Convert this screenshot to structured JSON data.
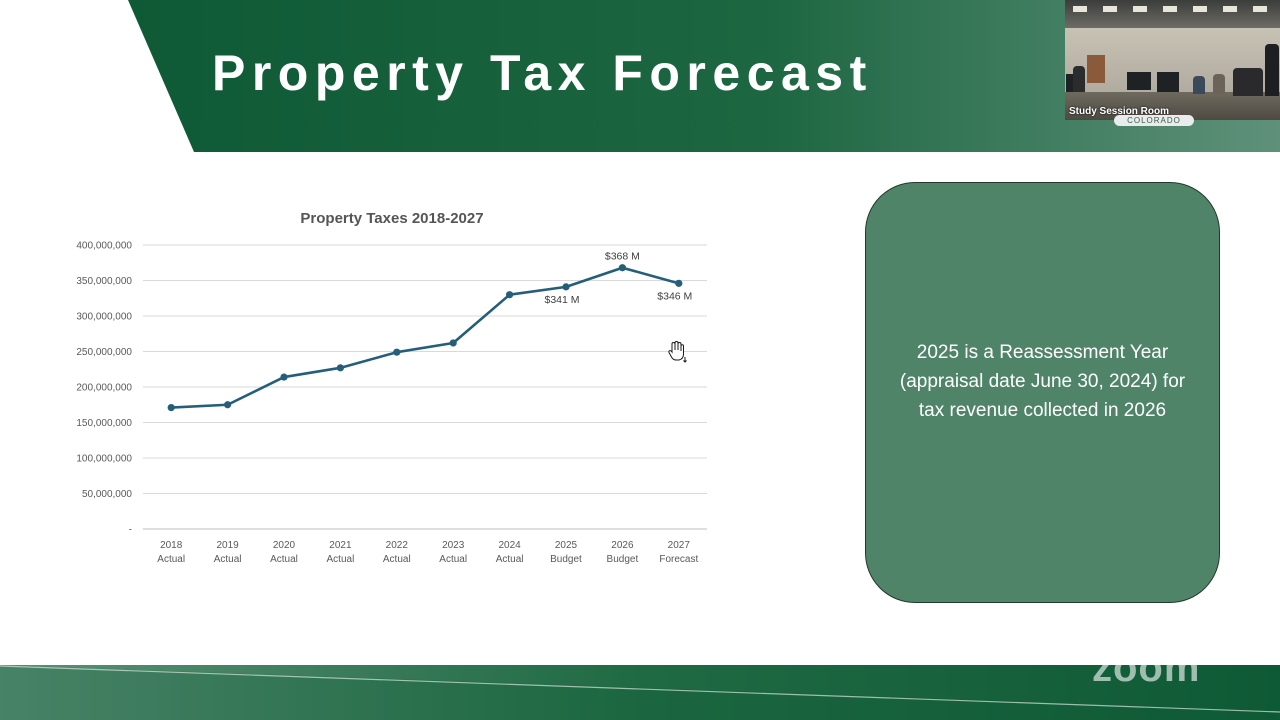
{
  "slide": {
    "title": "Property Tax Forecast"
  },
  "video": {
    "room_label": "Study Session Room",
    "badge_text": "COLORADO"
  },
  "callout": {
    "text": "2025 is a Reassessment Year (appraisal date June 30, 2024) for tax revenue collected in 2026"
  },
  "watermark": {
    "text": "zoom"
  },
  "colors": {
    "banner_dark": "#0f5a36",
    "banner_light": "#5f917a",
    "line": "#255e7a",
    "callout_fill": "#4f8469",
    "gridline": "#d9d9d9"
  },
  "chart_data": {
    "type": "line",
    "title": "Property Taxes 2018-2027",
    "categories": [
      [
        "2018",
        "Actual"
      ],
      [
        "2019",
        "Actual"
      ],
      [
        "2020",
        "Actual"
      ],
      [
        "2021",
        "Actual"
      ],
      [
        "2022",
        "Actual"
      ],
      [
        "2023",
        "Actual"
      ],
      [
        "2024",
        "Actual"
      ],
      [
        "2025",
        "Budget"
      ],
      [
        "2026",
        "Budget"
      ],
      [
        "2027",
        "Forecast"
      ]
    ],
    "values": [
      171000000,
      175000000,
      214000000,
      227000000,
      249000000,
      262000000,
      330000000,
      341000000,
      368000000,
      346000000
    ],
    "y_ticks": [
      "-",
      "50,000,000",
      "100,000,000",
      "150,000,000",
      "200,000,000",
      "250,000,000",
      "300,000,000",
      "350,000,000",
      "400,000,000"
    ],
    "ylim": [
      0,
      400000000
    ],
    "grid": true,
    "data_labels": [
      {
        "index": 7,
        "text": "$341 M",
        "placement": "below"
      },
      {
        "index": 8,
        "text": "$368 M",
        "placement": "above"
      },
      {
        "index": 9,
        "text": "$346 M",
        "placement": "below"
      }
    ]
  }
}
